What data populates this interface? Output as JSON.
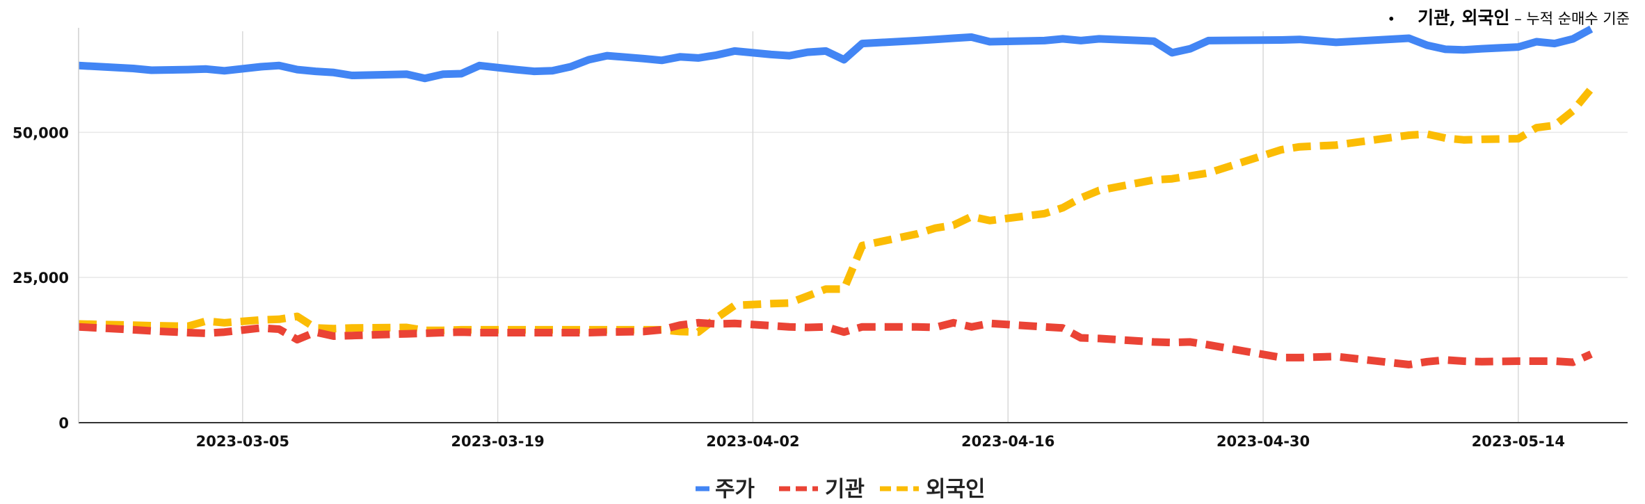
{
  "note": {
    "bullet": "•",
    "main": "기관, 외국인",
    "sub": " – 누적 순매수 기준"
  },
  "chart_data": {
    "type": "line",
    "x_ticks": [
      "2023-03-05",
      "2023-03-19",
      "2023-04-02",
      "2023-04-16",
      "2023-04-30",
      "2023-05-14"
    ],
    "y_ticks": [
      0,
      25000,
      50000
    ],
    "y_tick_labels": [
      "0",
      "25,000",
      "50,000"
    ],
    "ylim": [
      0,
      68000
    ],
    "xlim": [
      "2023-02-24",
      "2023-05-20"
    ],
    "grid": "vertical at x ticks, horizontal at y ticks",
    "legend_position": "bottom-center",
    "series": [
      {
        "name": "주가",
        "color": "#4285f4",
        "style": "solid",
        "points": [
          [
            "2023-02-24",
            61500
          ],
          [
            "2023-02-27",
            61000
          ],
          [
            "2023-02-28",
            60700
          ],
          [
            "2023-03-02",
            60800
          ],
          [
            "2023-03-03",
            60900
          ],
          [
            "2023-03-04",
            60600
          ],
          [
            "2023-03-06",
            61300
          ],
          [
            "2023-03-07",
            61500
          ],
          [
            "2023-03-08",
            60800
          ],
          [
            "2023-03-09",
            60500
          ],
          [
            "2023-03-10",
            60300
          ],
          [
            "2023-03-11",
            59800
          ],
          [
            "2023-03-14",
            60000
          ],
          [
            "2023-03-15",
            59300
          ],
          [
            "2023-03-16",
            60000
          ],
          [
            "2023-03-17",
            60100
          ],
          [
            "2023-03-18",
            61500
          ],
          [
            "2023-03-20",
            60800
          ],
          [
            "2023-03-21",
            60500
          ],
          [
            "2023-03-22",
            60600
          ],
          [
            "2023-03-23",
            61300
          ],
          [
            "2023-03-24",
            62500
          ],
          [
            "2023-03-25",
            63200
          ],
          [
            "2023-03-27",
            62700
          ],
          [
            "2023-03-28",
            62400
          ],
          [
            "2023-03-29",
            63000
          ],
          [
            "2023-03-30",
            62800
          ],
          [
            "2023-03-31",
            63300
          ],
          [
            "2023-04-01",
            64000
          ],
          [
            "2023-04-03",
            63400
          ],
          [
            "2023-04-04",
            63200
          ],
          [
            "2023-04-05",
            63800
          ],
          [
            "2023-04-06",
            64000
          ],
          [
            "2023-04-07",
            62500
          ],
          [
            "2023-04-08",
            65300
          ],
          [
            "2023-04-11",
            65800
          ],
          [
            "2023-04-12",
            66000
          ],
          [
            "2023-04-13",
            66200
          ],
          [
            "2023-04-14",
            66400
          ],
          [
            "2023-04-15",
            65600
          ],
          [
            "2023-04-18",
            65800
          ],
          [
            "2023-04-19",
            66100
          ],
          [
            "2023-04-20",
            65800
          ],
          [
            "2023-04-21",
            66100
          ],
          [
            "2023-04-24",
            65700
          ],
          [
            "2023-04-25",
            63700
          ],
          [
            "2023-04-26",
            64400
          ],
          [
            "2023-04-27",
            65800
          ],
          [
            "2023-05-01",
            65900
          ],
          [
            "2023-05-02",
            66000
          ],
          [
            "2023-05-04",
            65500
          ],
          [
            "2023-05-08",
            66200
          ],
          [
            "2023-05-09",
            65000
          ],
          [
            "2023-05-10",
            64300
          ],
          [
            "2023-05-11",
            64200
          ],
          [
            "2023-05-12",
            64400
          ],
          [
            "2023-05-14",
            64700
          ],
          [
            "2023-05-15",
            65600
          ],
          [
            "2023-05-16",
            65300
          ],
          [
            "2023-05-17",
            66100
          ],
          [
            "2023-05-18",
            67800
          ]
        ]
      },
      {
        "name": "기관",
        "color": "#ea4335",
        "style": "dashed",
        "points": [
          [
            "2023-02-24",
            16500
          ],
          [
            "2023-02-27",
            16000
          ],
          [
            "2023-02-28",
            15800
          ],
          [
            "2023-03-02",
            15500
          ],
          [
            "2023-03-03",
            15400
          ],
          [
            "2023-03-04",
            15600
          ],
          [
            "2023-03-06",
            16300
          ],
          [
            "2023-03-07",
            16100
          ],
          [
            "2023-03-08",
            14300
          ],
          [
            "2023-03-09",
            15600
          ],
          [
            "2023-03-10",
            14900
          ],
          [
            "2023-03-11",
            15000
          ],
          [
            "2023-03-14",
            15300
          ],
          [
            "2023-03-15",
            15400
          ],
          [
            "2023-03-16",
            15500
          ],
          [
            "2023-03-17",
            15600
          ],
          [
            "2023-03-18",
            15500
          ],
          [
            "2023-03-20",
            15500
          ],
          [
            "2023-03-21",
            15500
          ],
          [
            "2023-03-22",
            15500
          ],
          [
            "2023-03-23",
            15500
          ],
          [
            "2023-03-24",
            15500
          ],
          [
            "2023-03-25",
            15600
          ],
          [
            "2023-03-27",
            15700
          ],
          [
            "2023-03-28",
            16000
          ],
          [
            "2023-03-29",
            16800
          ],
          [
            "2023-03-30",
            17200
          ],
          [
            "2023-03-31",
            17000
          ],
          [
            "2023-04-01",
            17100
          ],
          [
            "2023-04-03",
            16700
          ],
          [
            "2023-04-04",
            16500
          ],
          [
            "2023-04-05",
            16400
          ],
          [
            "2023-04-06",
            16500
          ],
          [
            "2023-04-07",
            15600
          ],
          [
            "2023-04-08",
            16500
          ],
          [
            "2023-04-11",
            16500
          ],
          [
            "2023-04-12",
            16400
          ],
          [
            "2023-04-13",
            17200
          ],
          [
            "2023-04-14",
            16500
          ],
          [
            "2023-04-15",
            17100
          ],
          [
            "2023-04-18",
            16500
          ],
          [
            "2023-04-19",
            16300
          ],
          [
            "2023-04-20",
            14600
          ],
          [
            "2023-04-21",
            14500
          ],
          [
            "2023-04-24",
            13900
          ],
          [
            "2023-04-25",
            13800
          ],
          [
            "2023-04-26",
            13900
          ],
          [
            "2023-04-27",
            13400
          ],
          [
            "2023-05-01",
            11200
          ],
          [
            "2023-05-02",
            11200
          ],
          [
            "2023-05-04",
            11400
          ],
          [
            "2023-05-08",
            10000
          ],
          [
            "2023-05-09",
            10500
          ],
          [
            "2023-05-10",
            10800
          ],
          [
            "2023-05-11",
            10600
          ],
          [
            "2023-05-12",
            10500
          ],
          [
            "2023-05-14",
            10600
          ],
          [
            "2023-05-15",
            10600
          ],
          [
            "2023-05-16",
            10600
          ],
          [
            "2023-05-17",
            10400
          ],
          [
            "2023-05-18",
            11800
          ]
        ]
      },
      {
        "name": "외국인",
        "color": "#fbbc04",
        "style": "dashed",
        "points": [
          [
            "2023-02-24",
            17000
          ],
          [
            "2023-02-27",
            16800
          ],
          [
            "2023-02-28",
            16700
          ],
          [
            "2023-03-02",
            16600
          ],
          [
            "2023-03-03",
            17500
          ],
          [
            "2023-03-04",
            17200
          ],
          [
            "2023-03-06",
            17700
          ],
          [
            "2023-03-07",
            17800
          ],
          [
            "2023-03-08",
            18300
          ],
          [
            "2023-03-09",
            16300
          ],
          [
            "2023-03-10",
            16200
          ],
          [
            "2023-03-11",
            16300
          ],
          [
            "2023-03-14",
            16400
          ],
          [
            "2023-03-15",
            15900
          ],
          [
            "2023-03-16",
            15900
          ],
          [
            "2023-03-17",
            16000
          ],
          [
            "2023-03-18",
            16000
          ],
          [
            "2023-03-20",
            16000
          ],
          [
            "2023-03-21",
            16000
          ],
          [
            "2023-03-22",
            16000
          ],
          [
            "2023-03-23",
            16000
          ],
          [
            "2023-03-24",
            16000
          ],
          [
            "2023-03-25",
            16000
          ],
          [
            "2023-03-27",
            16000
          ],
          [
            "2023-03-28",
            16000
          ],
          [
            "2023-03-29",
            15700
          ],
          [
            "2023-03-30",
            15600
          ],
          [
            "2023-03-31",
            18000
          ],
          [
            "2023-04-01",
            20200
          ],
          [
            "2023-04-03",
            20500
          ],
          [
            "2023-04-04",
            20600
          ],
          [
            "2023-04-05",
            21800
          ],
          [
            "2023-04-06",
            23000
          ],
          [
            "2023-04-07",
            23000
          ],
          [
            "2023-04-08",
            30500
          ],
          [
            "2023-04-11",
            32500
          ],
          [
            "2023-04-12",
            33500
          ],
          [
            "2023-04-13",
            34000
          ],
          [
            "2023-04-14",
            35500
          ],
          [
            "2023-04-15",
            34800
          ],
          [
            "2023-04-18",
            36000
          ],
          [
            "2023-04-19",
            37000
          ],
          [
            "2023-04-20",
            38700
          ],
          [
            "2023-04-21",
            40000
          ],
          [
            "2023-04-24",
            41800
          ],
          [
            "2023-04-25",
            42000
          ],
          [
            "2023-04-26",
            42500
          ],
          [
            "2023-04-27",
            43000
          ],
          [
            "2023-05-01",
            47000
          ],
          [
            "2023-05-02",
            47500
          ],
          [
            "2023-05-04",
            47800
          ],
          [
            "2023-05-08",
            49500
          ],
          [
            "2023-05-09",
            49700
          ],
          [
            "2023-05-10",
            49000
          ],
          [
            "2023-05-11",
            48700
          ],
          [
            "2023-05-12",
            48800
          ],
          [
            "2023-05-14",
            48900
          ],
          [
            "2023-05-15",
            50800
          ],
          [
            "2023-05-16",
            51200
          ],
          [
            "2023-05-17",
            53700
          ],
          [
            "2023-05-18",
            57500
          ]
        ]
      }
    ]
  }
}
